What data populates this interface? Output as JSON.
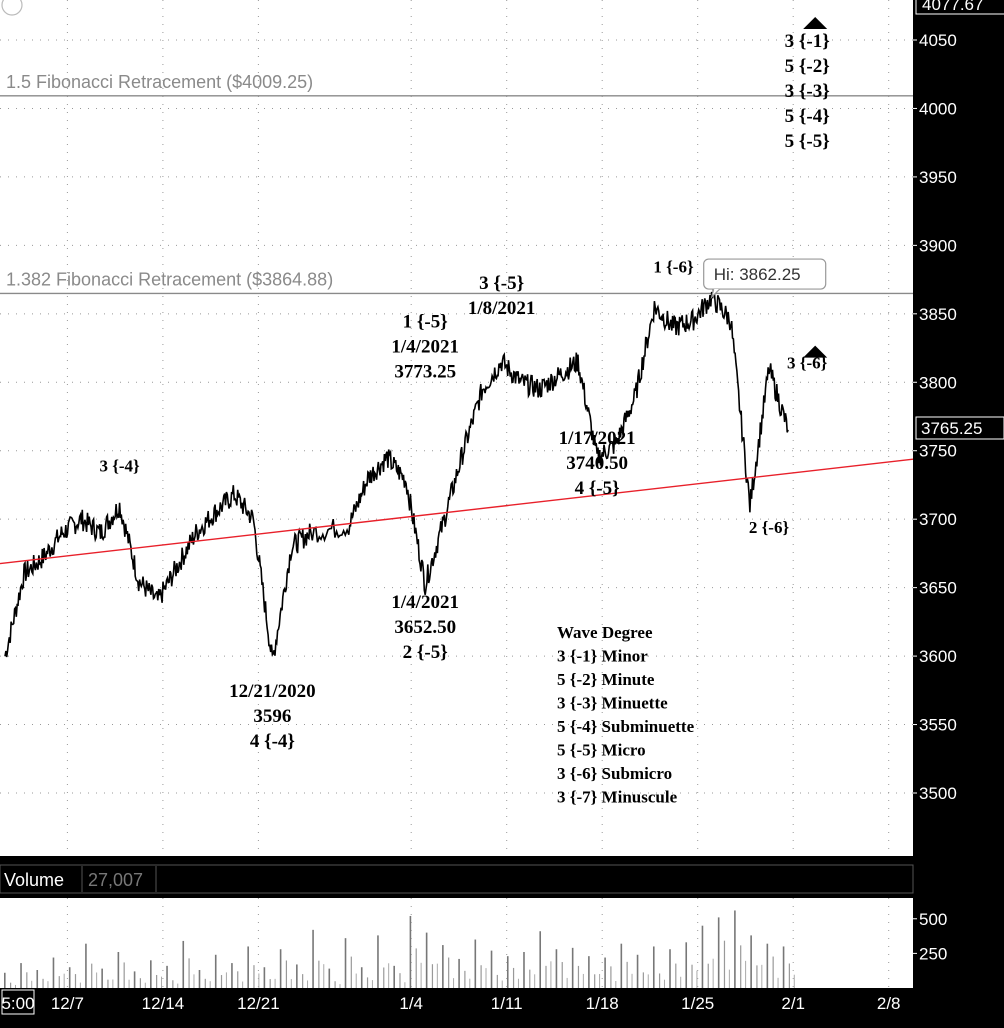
{
  "chart_data": [
    {
      "type": "line",
      "series": [
        {
          "name": "",
          "x": [
            "12/1",
            "12/2",
            "12/3",
            "12/4",
            "12/7",
            "12/8",
            "12/9",
            "12/10",
            "12/11",
            "12/14",
            "12/15",
            "12/16",
            "12/17",
            "12/18",
            "12/21",
            "12/22",
            "12/23",
            "12/28",
            "12/29",
            "12/30",
            "12/31",
            "1/4",
            "1/5",
            "1/6",
            "1/7",
            "1/8",
            "1/11",
            "1/12",
            "1/13",
            "1/14",
            "1/15",
            "1/18",
            "1/19",
            "1/20",
            "1/21",
            "1/22",
            "1/25",
            "1/26",
            "1/27",
            "1/28",
            "1/29"
          ],
          "values": [
            3600,
            3660,
            3672,
            3690,
            3700,
            3690,
            3710,
            3655,
            3640,
            3665,
            3690,
            3705,
            3718,
            3700,
            3596,
            3680,
            3690,
            3695,
            3730,
            3745,
            3728,
            3652.5,
            3700,
            3750,
            3795,
            3815,
            3800,
            3795,
            3805,
            3815,
            3745,
            3755,
            3790,
            3855,
            3840,
            3845,
            3862.25,
            3845,
            3710,
            3810,
            3765.25
          ]
        }
      ],
      "ylim": [
        3450,
        4080
      ],
      "x_ticks": [
        "5:00",
        "12/7",
        "12/14",
        "12/21",
        "1/4",
        "1/11",
        "1/18",
        "1/25",
        "2/1",
        "2/8"
      ],
      "y_ticks": [
        "3500",
        "3550",
        "3600",
        "3650",
        "3700",
        "3750",
        "3800",
        "3850",
        "3900",
        "3950",
        "4000",
        "4050"
      ],
      "top_price_label": "4077.67",
      "last_price_label": "3765.25",
      "grid": true,
      "fib_lines": [
        {
          "label": "1.5 Fibonacci  Retracement  ($4009.25)",
          "value": 4009.25
        },
        {
          "label": "1.382 Fibonacci Retracement ($3864.88)",
          "value": 3864.88
        }
      ],
      "trendline": {
        "from": {
          "x": "12/1",
          "y": 3668
        },
        "to": {
          "x": "2/1",
          "y": 3735
        }
      },
      "hi_label": "Hi: 3862.25",
      "annotations": [
        {
          "x": "12/9",
          "y": 3735,
          "text": "3 {-4}"
        },
        {
          "x": "12/21",
          "y": 3570,
          "lines": [
            "12/21/2020",
            "3596",
            "4 {-4}"
          ]
        },
        {
          "x": "1/4",
          "y": 3840,
          "lines": [
            "1 {-5}",
            "1/4/2021",
            "3773.25"
          ]
        },
        {
          "x": "1/8",
          "y": 3868,
          "lines": [
            "3 {-5}",
            "1/8/2021"
          ]
        },
        {
          "x": "1/4",
          "y": 3635,
          "lines": [
            "1/4/2021",
            "3652.50",
            "2 {-5}"
          ]
        },
        {
          "x": "1/15",
          "y": 3755,
          "lines": [
            "1/17/2021",
            "3740.50",
            "4 {-5}"
          ]
        },
        {
          "x": "1/21",
          "y": 3880,
          "text": "1 {-6}"
        },
        {
          "x": "1/28",
          "y": 3690,
          "text": "2 {-6}"
        },
        {
          "x": "2/1",
          "y": 3810,
          "text": "3 {-6}"
        },
        {
          "x": "2/1",
          "y": 4045,
          "lines": [
            "3 {-1}",
            "5 {-2}",
            "3 {-3}",
            "5 {-4}",
            "5 {-5}"
          ]
        }
      ],
      "legend": {
        "title": "Wave Degree",
        "items": [
          "3 {-1} Minor",
          "5 {-2} Minute",
          "3 {-3} Minuette",
          "5 {-4} Subminuette",
          "5 {-5} Micro",
          "3 {-6} Submicro",
          "3 {-7} Minuscule"
        ]
      }
    },
    {
      "type": "bar",
      "title": "Volume",
      "current_value": "27,007",
      "y_ticks": [
        "250",
        "500"
      ],
      "ylim": [
        0,
        650
      ],
      "values": [
        110,
        180,
        130,
        220,
        150,
        320,
        140,
        260,
        120,
        200,
        160,
        340,
        130,
        240,
        180,
        300,
        150,
        280,
        170,
        420,
        140,
        360,
        150,
        380,
        160,
        520,
        400,
        310,
        210,
        350,
        270,
        230,
        260,
        410,
        280,
        290,
        230,
        220,
        320,
        240,
        300,
        280,
        330,
        450,
        510,
        560,
        380,
        320,
        300
      ]
    }
  ]
}
